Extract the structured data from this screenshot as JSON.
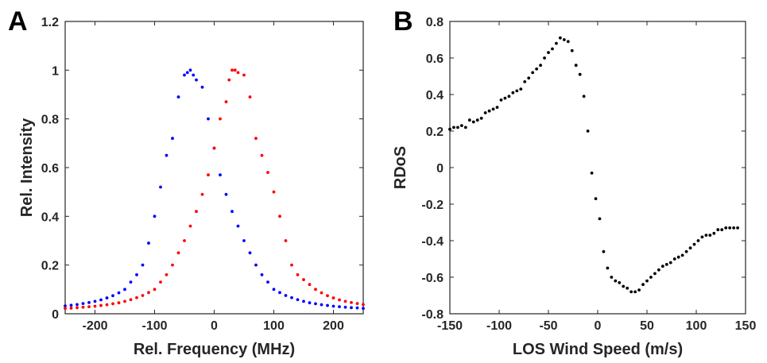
{
  "chart_data": [
    {
      "type": "scatter",
      "panel_label": "A",
      "xlabel": "Rel. Frequency (MHz)",
      "ylabel": "Rel. Intensity",
      "xlim": [
        -250,
        250
      ],
      "ylim": [
        0,
        1.2
      ],
      "xticks": [
        -200,
        -100,
        0,
        100,
        200
      ],
      "yticks": [
        0,
        0.2,
        0.4,
        0.6,
        0.8,
        1,
        1.2
      ],
      "xtick_labels": [
        "-200",
        "-100",
        "0",
        "100",
        "200"
      ],
      "ytick_labels": [
        "0",
        "0.2",
        "0.4",
        "0.6",
        "0.8",
        "1",
        "1.2"
      ],
      "grid": false,
      "series": [
        {
          "color": "#0000ff",
          "x": [
            -250,
            -240,
            -230,
            -220,
            -210,
            -200,
            -190,
            -180,
            -170,
            -160,
            -150,
            -140,
            -130,
            -120,
            -110,
            -100,
            -90,
            -80,
            -70,
            -60,
            -50,
            -45,
            -40,
            -35,
            -30,
            -20,
            -10,
            0,
            10,
            20,
            30,
            40,
            50,
            60,
            70,
            80,
            90,
            100,
            110,
            120,
            130,
            140,
            150,
            160,
            170,
            180,
            190,
            200,
            210,
            220,
            230,
            240,
            250
          ],
          "y": [
            0.032,
            0.035,
            0.038,
            0.042,
            0.046,
            0.051,
            0.057,
            0.065,
            0.074,
            0.086,
            0.1,
            0.13,
            0.16,
            0.2,
            0.29,
            0.4,
            0.52,
            0.65,
            0.72,
            0.89,
            0.98,
            0.99,
            1.0,
            0.98,
            0.96,
            0.93,
            0.8,
            0.68,
            0.57,
            0.49,
            0.42,
            0.36,
            0.3,
            0.25,
            0.2,
            0.16,
            0.13,
            0.1,
            0.087,
            0.075,
            0.066,
            0.058,
            0.051,
            0.045,
            0.041,
            0.037,
            0.034,
            0.031,
            0.029,
            0.027,
            0.025,
            0.024,
            0.022
          ]
        },
        {
          "color": "#ff0000",
          "x": [
            -250,
            -240,
            -230,
            -220,
            -210,
            -200,
            -190,
            -180,
            -170,
            -160,
            -150,
            -140,
            -130,
            -120,
            -110,
            -100,
            -90,
            -80,
            -70,
            -60,
            -50,
            -40,
            -30,
            -20,
            -10,
            0,
            10,
            20,
            25,
            30,
            35,
            40,
            50,
            60,
            70,
            80,
            90,
            100,
            110,
            120,
            130,
            140,
            150,
            160,
            170,
            180,
            190,
            200,
            210,
            220,
            230,
            240,
            250
          ],
          "y": [
            0.022,
            0.023,
            0.025,
            0.027,
            0.029,
            0.031,
            0.034,
            0.037,
            0.041,
            0.045,
            0.051,
            0.058,
            0.066,
            0.075,
            0.087,
            0.1,
            0.13,
            0.16,
            0.2,
            0.25,
            0.3,
            0.36,
            0.42,
            0.49,
            0.57,
            0.68,
            0.8,
            0.87,
            0.96,
            1.0,
            1.0,
            0.99,
            0.98,
            0.89,
            0.72,
            0.65,
            0.58,
            0.5,
            0.4,
            0.3,
            0.2,
            0.16,
            0.14,
            0.12,
            0.1,
            0.086,
            0.074,
            0.065,
            0.057,
            0.051,
            0.046,
            0.042,
            0.038
          ]
        }
      ]
    },
    {
      "type": "scatter",
      "panel_label": "B",
      "xlabel": "LOS Wind Speed (m/s)",
      "ylabel": "RDoS",
      "xlim": [
        -150,
        150
      ],
      "ylim": [
        -0.8,
        0.8
      ],
      "xticks": [
        -150,
        -100,
        -50,
        0,
        50,
        100,
        150
      ],
      "yticks": [
        -0.8,
        -0.6,
        -0.4,
        -0.2,
        0,
        0.2,
        0.4,
        0.6,
        0.8
      ],
      "xtick_labels": [
        "-150",
        "-100",
        "-50",
        "0",
        "50",
        "100",
        "150"
      ],
      "ytick_labels": [
        "-0.8",
        "-0.6",
        "-0.4",
        "-0.2",
        "0",
        "0.2",
        "0.4",
        "0.6",
        "0.8"
      ],
      "grid": false,
      "series": [
        {
          "color": "#000000",
          "x": [
            -150,
            -146,
            -142,
            -138,
            -134,
            -130,
            -126,
            -122,
            -118,
            -114,
            -110,
            -106,
            -102,
            -98,
            -94,
            -90,
            -86,
            -82,
            -78,
            -74,
            -70,
            -66,
            -62,
            -58,
            -54,
            -50,
            -46,
            -42,
            -38,
            -34,
            -30,
            -26,
            -22,
            -18,
            -14,
            -10,
            -6,
            -2,
            2,
            6,
            10,
            14,
            18,
            22,
            26,
            30,
            34,
            38,
            42,
            46,
            50,
            54,
            58,
            62,
            66,
            70,
            74,
            78,
            82,
            86,
            90,
            94,
            98,
            102,
            106,
            110,
            114,
            118,
            122,
            126,
            130,
            134,
            138,
            142
          ],
          "y": [
            0.21,
            0.22,
            0.22,
            0.23,
            0.22,
            0.26,
            0.25,
            0.26,
            0.27,
            0.3,
            0.31,
            0.32,
            0.33,
            0.37,
            0.38,
            0.39,
            0.41,
            0.42,
            0.43,
            0.47,
            0.49,
            0.52,
            0.54,
            0.56,
            0.6,
            0.63,
            0.65,
            0.68,
            0.71,
            0.7,
            0.69,
            0.64,
            0.56,
            0.51,
            0.39,
            0.2,
            -0.03,
            -0.17,
            -0.28,
            -0.46,
            -0.55,
            -0.6,
            -0.62,
            -0.63,
            -0.65,
            -0.66,
            -0.68,
            -0.68,
            -0.67,
            -0.64,
            -0.62,
            -0.6,
            -0.58,
            -0.56,
            -0.54,
            -0.53,
            -0.52,
            -0.5,
            -0.49,
            -0.48,
            -0.46,
            -0.44,
            -0.42,
            -0.4,
            -0.38,
            -0.37,
            -0.37,
            -0.36,
            -0.34,
            -0.34,
            -0.33,
            -0.33,
            -0.33,
            -0.33
          ]
        }
      ]
    }
  ]
}
